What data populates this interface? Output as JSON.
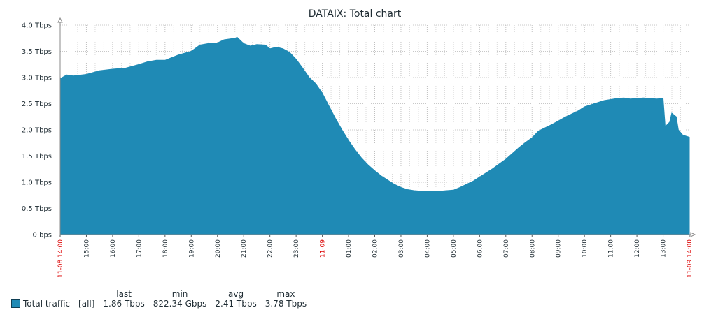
{
  "window": {
    "title": "DATAIX: Total chart"
  },
  "chart_data": {
    "type": "area",
    "title": "DATAIX: Total chart",
    "ylim": [
      0,
      4.0
    ],
    "yunit": "Tbps",
    "yticks": [
      "0 bps",
      "0.5 Tbps",
      "1.0 Tbps",
      "1.5 Tbps",
      "2.0 Tbps",
      "2.5 Tbps",
      "3.0 Tbps",
      "3.5 Tbps",
      "4.0 Tbps"
    ],
    "xlim": [
      "11-08 14:00",
      "11-09 14:00"
    ],
    "xticks": [
      {
        "label": "11-08 14:00",
        "hour": 0,
        "highlight": true
      },
      {
        "label": "15:00",
        "hour": 1
      },
      {
        "label": "16:00",
        "hour": 2
      },
      {
        "label": "17:00",
        "hour": 3
      },
      {
        "label": "18:00",
        "hour": 4
      },
      {
        "label": "19:00",
        "hour": 5
      },
      {
        "label": "20:00",
        "hour": 6
      },
      {
        "label": "21:00",
        "hour": 7
      },
      {
        "label": "22:00",
        "hour": 8
      },
      {
        "label": "23:00",
        "hour": 9
      },
      {
        "label": "11-09",
        "hour": 10,
        "highlight": true
      },
      {
        "label": "01:00",
        "hour": 11
      },
      {
        "label": "02:00",
        "hour": 12
      },
      {
        "label": "03:00",
        "hour": 13
      },
      {
        "label": "04:00",
        "hour": 14
      },
      {
        "label": "05:00",
        "hour": 15
      },
      {
        "label": "06:00",
        "hour": 16
      },
      {
        "label": "07:00",
        "hour": 17
      },
      {
        "label": "08:00",
        "hour": 18
      },
      {
        "label": "09:00",
        "hour": 19
      },
      {
        "label": "10:00",
        "hour": 20
      },
      {
        "label": "11:00",
        "hour": 21
      },
      {
        "label": "12:00",
        "hour": 22
      },
      {
        "label": "13:00",
        "hour": 23
      },
      {
        "label": "11-09 14:00",
        "hour": 24,
        "highlight": true
      }
    ],
    "grid": true,
    "legend_position": "bottom-left",
    "series": [
      {
        "name": "Total traffic",
        "color": "#1f8ab5",
        "x": [
          "11-08 14:00",
          "11-08 14:15",
          "11-08 14:30",
          "11-08 15:00",
          "11-08 15:30",
          "11-08 16:00",
          "11-08 16:30",
          "11-08 17:00",
          "11-08 17:20",
          "11-08 17:40",
          "11-08 18:00",
          "11-08 18:30",
          "11-08 19:00",
          "11-08 19:20",
          "11-08 19:40",
          "11-08 20:00",
          "11-08 20:15",
          "11-08 20:40",
          "11-08 20:45",
          "11-08 21:00",
          "11-08 21:15",
          "11-08 21:30",
          "11-08 21:50",
          "11-08 22:00",
          "11-08 22:15",
          "11-08 22:30",
          "11-08 22:45",
          "11-08 23:00",
          "11-08 23:15",
          "11-08 23:30",
          "11-08 23:45",
          "11-09 00:00",
          "11-09 00:15",
          "11-09 00:30",
          "11-09 00:45",
          "11-09 01:00",
          "11-09 01:15",
          "11-09 01:30",
          "11-09 01:45",
          "11-09 02:00",
          "11-09 02:15",
          "11-09 02:30",
          "11-09 02:45",
          "11-09 03:00",
          "11-09 03:15",
          "11-09 03:30",
          "11-09 03:45",
          "11-09 04:00",
          "11-09 04:15",
          "11-09 04:30",
          "11-09 04:45",
          "11-09 05:00",
          "11-09 05:15",
          "11-09 05:30",
          "11-09 05:45",
          "11-09 06:00",
          "11-09 06:15",
          "11-09 06:30",
          "11-09 06:45",
          "11-09 07:00",
          "11-09 07:15",
          "11-09 07:30",
          "11-09 07:45",
          "11-09 08:00",
          "11-09 08:15",
          "11-09 08:30",
          "11-09 08:45",
          "11-09 09:00",
          "11-09 09:15",
          "11-09 09:30",
          "11-09 09:45",
          "11-09 10:00",
          "11-09 10:15",
          "11-09 10:30",
          "11-09 10:45",
          "11-09 11:00",
          "11-09 11:15",
          "11-09 11:30",
          "11-09 11:45",
          "11-09 12:00",
          "11-09 12:15",
          "11-09 12:30",
          "11-09 12:45",
          "11-09 13:00",
          "11-09 13:05",
          "11-09 13:15",
          "11-09 13:20",
          "11-09 13:30",
          "11-09 13:35",
          "11-09 13:45",
          "11-09 14:00"
        ],
        "hours": [
          0,
          0.25,
          0.5,
          1,
          1.5,
          2,
          2.5,
          3,
          3.33,
          3.67,
          4,
          4.5,
          5,
          5.33,
          5.67,
          6,
          6.25,
          6.67,
          6.75,
          7,
          7.25,
          7.5,
          7.83,
          8,
          8.25,
          8.5,
          8.75,
          9,
          9.25,
          9.5,
          9.75,
          10,
          10.25,
          10.5,
          10.75,
          11,
          11.25,
          11.5,
          11.75,
          12,
          12.25,
          12.5,
          12.75,
          13,
          13.25,
          13.5,
          13.75,
          14,
          14.25,
          14.5,
          14.75,
          15,
          15.25,
          15.5,
          15.75,
          16,
          16.25,
          16.5,
          16.75,
          17,
          17.25,
          17.5,
          17.75,
          18,
          18.25,
          18.5,
          18.75,
          19,
          19.25,
          19.5,
          19.75,
          20,
          20.25,
          20.5,
          20.75,
          21,
          21.25,
          21.5,
          21.75,
          22,
          22.25,
          22.5,
          22.75,
          23,
          23.08,
          23.25,
          23.33,
          23.5,
          23.58,
          23.75,
          24
        ],
        "values": [
          2.98,
          3.05,
          3.03,
          3.06,
          3.13,
          3.16,
          3.18,
          3.25,
          3.3,
          3.33,
          3.33,
          3.43,
          3.5,
          3.62,
          3.65,
          3.66,
          3.72,
          3.75,
          3.77,
          3.65,
          3.6,
          3.63,
          3.62,
          3.55,
          3.58,
          3.55,
          3.48,
          3.35,
          3.18,
          3.0,
          2.88,
          2.7,
          2.46,
          2.22,
          2.0,
          1.8,
          1.62,
          1.46,
          1.33,
          1.22,
          1.12,
          1.04,
          0.96,
          0.9,
          0.86,
          0.84,
          0.83,
          0.83,
          0.83,
          0.83,
          0.84,
          0.85,
          0.9,
          0.96,
          1.02,
          1.1,
          1.18,
          1.26,
          1.35,
          1.44,
          1.55,
          1.66,
          1.76,
          1.85,
          1.98,
          2.04,
          2.1,
          2.17,
          2.24,
          2.3,
          2.36,
          2.44,
          2.48,
          2.52,
          2.56,
          2.58,
          2.6,
          2.61,
          2.59,
          2.6,
          2.61,
          2.6,
          2.59,
          2.6,
          2.06,
          2.15,
          2.32,
          2.25,
          2.0,
          1.9,
          1.86
        ]
      }
    ]
  },
  "legend": {
    "headers": [
      "last",
      "min",
      "avg",
      "max"
    ],
    "rows": [
      {
        "name": "Total traffic",
        "scope": "[all]",
        "last": "1.86 Tbps",
        "min": "822.34 Gbps",
        "avg": "2.41 Tbps",
        "max": "3.78 Tbps",
        "color": "#1f8ab5"
      }
    ]
  }
}
